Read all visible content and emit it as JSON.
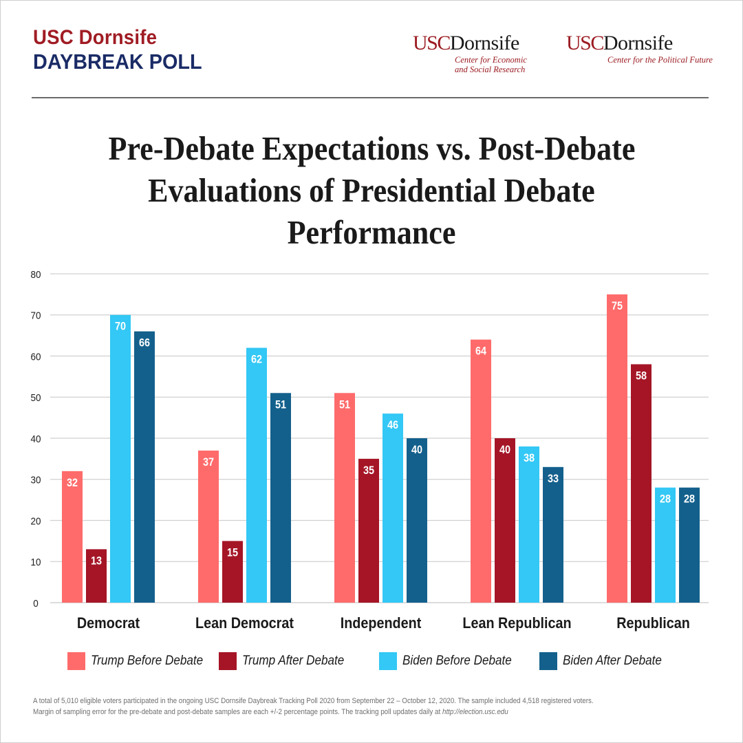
{
  "header": {
    "brand_line1": "USC Dornsife",
    "brand_line2": "DAYBREAK POLL",
    "logos": [
      {
        "usc": "USC",
        "name": "Dornsife",
        "sub_lines": [
          "Center for Economic",
          "and Social Research"
        ]
      },
      {
        "usc": "USC",
        "name": "Dornsife",
        "sub_lines": [
          "Center for the Political Future"
        ]
      }
    ]
  },
  "colors": {
    "brand_red": "#a01c24",
    "brand_navy": "#1a2b66",
    "trump_before": "#ff6b6b",
    "trump_after": "#a51526",
    "biden_before": "#33c8f5",
    "biden_after": "#13608c",
    "grid": "#d0d0d0"
  },
  "chart_data": {
    "type": "bar",
    "title": "Pre-Debate Expectations vs. Post-Debate Evaluations of Presidential Debate Performance",
    "title_lines": [
      "Pre-Debate Expectations vs. Post-Debate",
      "Evaluations of Presidential Debate",
      "Performance"
    ],
    "xlabel": "",
    "ylabel": "",
    "ylim": [
      0,
      80
    ],
    "yticks": [
      0,
      10,
      20,
      30,
      40,
      50,
      60,
      70,
      80
    ],
    "grid": true,
    "legend_position": "bottom",
    "categories": [
      "Democrat",
      "Lean Democrat",
      "Independent",
      "Lean Republican",
      "Republican"
    ],
    "series": [
      {
        "name": "Trump Before Debate",
        "color_key": "trump_before",
        "values": [
          32,
          37,
          51,
          64,
          75
        ]
      },
      {
        "name": "Trump After Debate",
        "color_key": "trump_after",
        "values": [
          13,
          15,
          35,
          40,
          58
        ]
      },
      {
        "name": "Biden Before Debate",
        "color_key": "biden_before",
        "values": [
          70,
          62,
          46,
          38,
          28
        ]
      },
      {
        "name": "Biden After Debate",
        "color_key": "biden_after",
        "values": [
          66,
          51,
          40,
          33,
          28
        ]
      }
    ]
  },
  "footnote": {
    "line1": "A total of 5,010 eligible voters participated in the ongoing USC Dornsife Daybreak Tracking Poll 2020 from September 22 – October 12, 2020. The sample included 4,518 registered voters.",
    "line2_text": "Margin of sampling error for the pre-debate and post-debate samples are each +/-2 percentage points. The tracking poll updates daily at ",
    "line2_link": "http://election.usc.edu"
  }
}
